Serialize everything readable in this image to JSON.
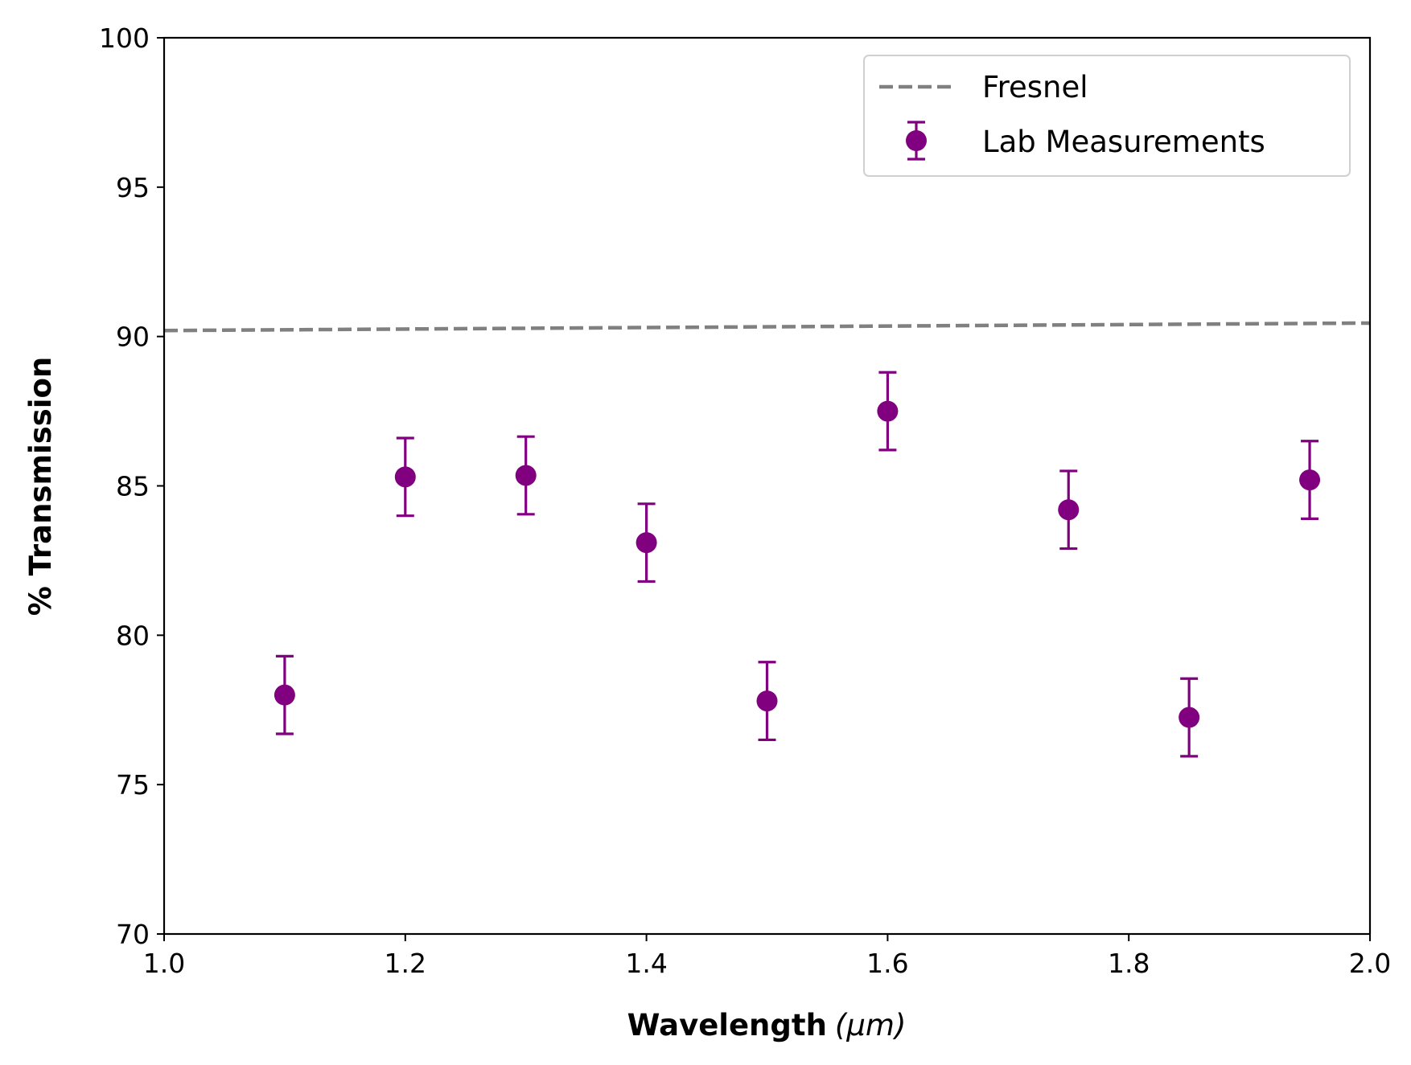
{
  "chart_data": {
    "type": "scatter",
    "xlabel": "Wavelength",
    "xlabel_unit": "(μm)",
    "ylabel": "% Transmission",
    "xlim": [
      1.0,
      2.0
    ],
    "ylim": [
      70,
      100
    ],
    "xticks": [
      "1.0",
      "1.2",
      "1.4",
      "1.6",
      "1.8",
      "2.0"
    ],
    "yticks": [
      "70",
      "75",
      "80",
      "85",
      "90",
      "95",
      "100"
    ],
    "grid": false,
    "legend_position": "top-right",
    "series": [
      {
        "name": "Fresnel",
        "kind": "line",
        "style": "dashed",
        "color": "#808080",
        "x": [
          1.0,
          2.0
        ],
        "y": [
          90.2,
          90.45
        ]
      },
      {
        "name": "Lab Measurements",
        "kind": "errorbar",
        "color": "#800080",
        "x": [
          1.1,
          1.2,
          1.3,
          1.4,
          1.5,
          1.6,
          1.75,
          1.85,
          1.95
        ],
        "y": [
          78.0,
          85.3,
          85.35,
          83.1,
          77.8,
          87.5,
          84.2,
          77.25,
          85.2
        ],
        "yerr": [
          1.3,
          1.3,
          1.3,
          1.3,
          1.3,
          1.3,
          1.3,
          1.3,
          1.3
        ]
      }
    ]
  }
}
